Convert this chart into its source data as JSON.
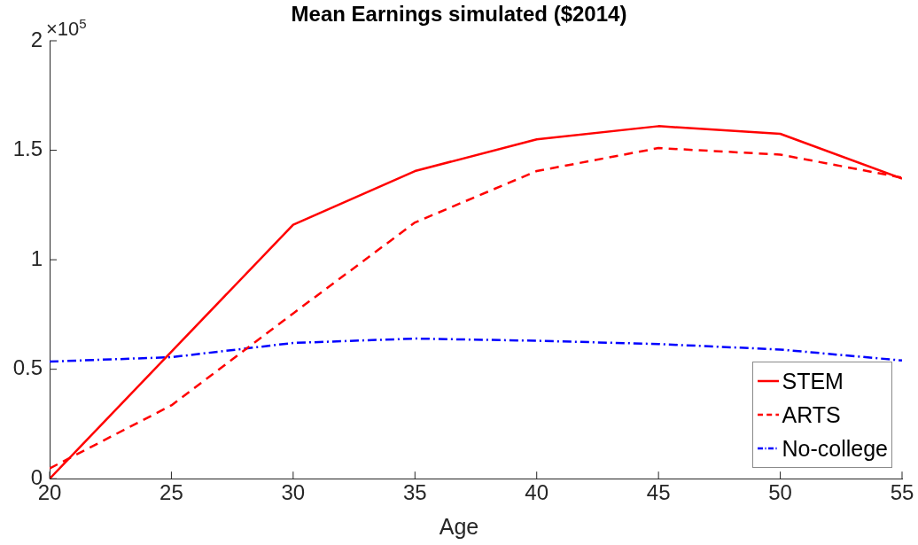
{
  "chart_data": {
    "type": "line",
    "title": "Mean Earnings simulated ($2014)",
    "xlabel": "Age",
    "x": [
      20,
      25,
      30,
      35,
      40,
      45,
      50,
      55
    ],
    "series": [
      {
        "name": "STEM",
        "color": "#ff0000",
        "line_style": "solid",
        "values": [
          0,
          0.58,
          1.16,
          1.405,
          1.55,
          1.61,
          1.575,
          1.37
        ]
      },
      {
        "name": "ARTS",
        "color": "#ff0000",
        "line_style": "dashed",
        "values": [
          0.047,
          0.335,
          0.755,
          1.17,
          1.405,
          1.51,
          1.48,
          1.375
        ]
      },
      {
        "name": "No-college",
        "color": "#0000ff",
        "line_style": "dashdot",
        "values": [
          0.535,
          0.555,
          0.62,
          0.64,
          0.63,
          0.615,
          0.59,
          0.54
        ]
      }
    ],
    "xlim": [
      20,
      55
    ],
    "xticks": [
      20,
      25,
      30,
      35,
      40,
      45,
      50,
      55
    ],
    "ylim": [
      0,
      2
    ],
    "yticks": [
      0,
      0.5,
      1,
      1.5,
      2
    ],
    "annotations": [
      "×10$^{5}$"
    ],
    "grid": false,
    "legend": "bottom right",
    "marker": "none"
  }
}
